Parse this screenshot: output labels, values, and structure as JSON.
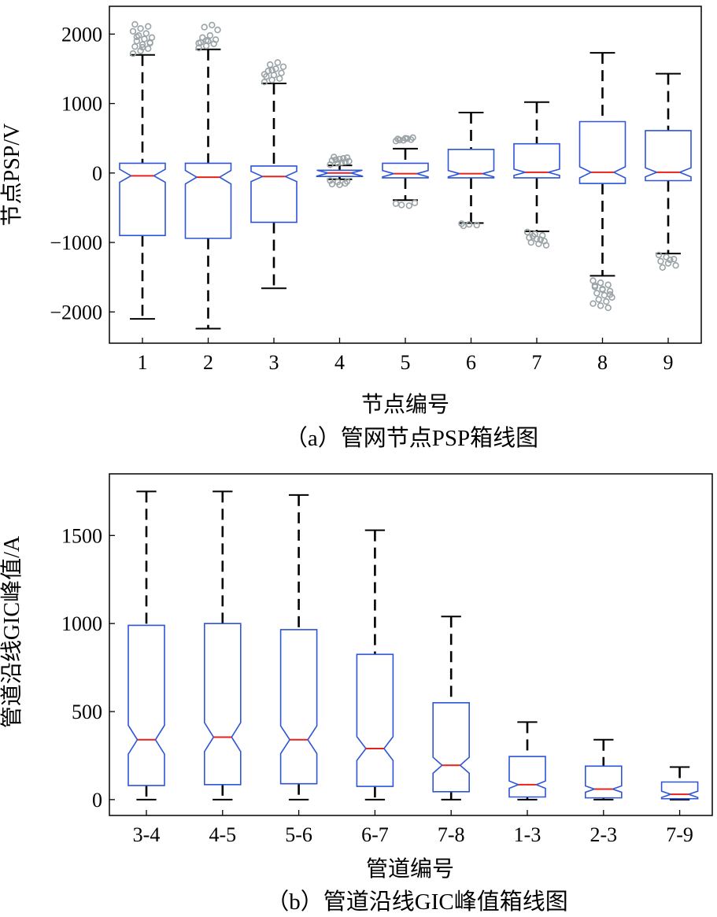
{
  "chart_data": [
    {
      "type": "boxplot",
      "notched": true,
      "caption": "（a）管网节点PSP箱线图",
      "xlabel": "节点编号",
      "ylabel": "节点PSP/V",
      "ylim": [
        -2450,
        2400
      ],
      "yticks": [
        2000,
        1000,
        0,
        -1000,
        -2000
      ],
      "ytick_labels": [
        "2000",
        "1000",
        "0",
        "−1000",
        "−2000"
      ],
      "categories": [
        "1",
        "2",
        "3",
        "4",
        "5",
        "6",
        "7",
        "8",
        "9"
      ],
      "boxes": [
        {
          "q1": -900,
          "median": -40,
          "q3": 140,
          "whisker_low": -2100,
          "whisker_high": 1700,
          "outliers": [
            1720,
            1760,
            1790,
            1820,
            1850,
            1880,
            1900,
            1930,
            1950,
            1980,
            2010,
            2040,
            2080,
            2110,
            2140,
            1810,
            1870,
            1960
          ]
        },
        {
          "q1": -940,
          "median": -60,
          "q3": 140,
          "whisker_low": -2240,
          "whisker_high": 1780,
          "outliers": [
            1800,
            1830,
            1860,
            1880,
            1900,
            1920,
            1950,
            1980,
            2060,
            2100,
            2130,
            1870,
            1910
          ]
        },
        {
          "q1": -710,
          "median": -50,
          "q3": 100,
          "whisker_low": -1660,
          "whisker_high": 1290,
          "outliers": [
            1310,
            1340,
            1360,
            1390,
            1410,
            1440,
            1470,
            1500,
            1530,
            1560,
            1590,
            1420,
            1480
          ]
        },
        {
          "q1": -50,
          "median": 0,
          "q3": 40,
          "whisker_low": -90,
          "whisker_high": 110,
          "outliers": [
            120,
            140,
            160,
            180,
            200,
            220,
            230,
            150,
            170,
            190,
            210,
            -110,
            -130,
            -150,
            -160,
            -170,
            -120
          ]
        },
        {
          "q1": -70,
          "median": -10,
          "q3": 140,
          "whisker_low": -390,
          "whisker_high": 350,
          "outliers": [
            460,
            470,
            480,
            490,
            500,
            510,
            475,
            495,
            -430,
            -460,
            -470,
            -440
          ]
        },
        {
          "q1": -70,
          "median": -10,
          "q3": 340,
          "whisker_low": -720,
          "whisker_high": 870,
          "outliers": [
            -730,
            -740,
            -750,
            -760
          ]
        },
        {
          "q1": -70,
          "median": 10,
          "q3": 420,
          "whisker_low": -840,
          "whisker_high": 1020,
          "outliers": [
            -850,
            -880,
            -900,
            -930,
            -950,
            -980,
            -1000,
            -1020,
            -1040,
            -910,
            -960
          ]
        },
        {
          "q1": -150,
          "median": 10,
          "q3": 740,
          "whisker_low": -1480,
          "whisker_high": 1730,
          "outliers": [
            -1550,
            -1580,
            -1610,
            -1640,
            -1670,
            -1700,
            -1730,
            -1760,
            -1790,
            -1820,
            -1850,
            -1880,
            -1910,
            -1940,
            -1620,
            -1680,
            -1750
          ]
        },
        {
          "q1": -110,
          "median": 10,
          "q3": 610,
          "whisker_low": -1160,
          "whisker_high": 1430,
          "outliers": [
            -1180,
            -1210,
            -1240,
            -1270,
            -1300,
            -1330,
            -1360,
            -1250
          ]
        }
      ]
    },
    {
      "type": "boxplot",
      "notched": true,
      "caption": "（b）管道沿线GIC峰值箱线图",
      "xlabel": "管道编号",
      "ylabel": "管道沿线GIC峰值/A",
      "ylim": [
        -90,
        1850
      ],
      "yticks": [
        1500,
        1000,
        500,
        0
      ],
      "ytick_labels": [
        "1500",
        "1000",
        "500",
        "0"
      ],
      "categories": [
        "3-4",
        "4-5",
        "5-6",
        "6-7",
        "7-8",
        "1-3",
        "2-3",
        "7-9"
      ],
      "boxes": [
        {
          "q1": 80,
          "median": 340,
          "q3": 990,
          "whisker_low": 0,
          "whisker_high": 1750,
          "outliers": []
        },
        {
          "q1": 85,
          "median": 355,
          "q3": 1000,
          "whisker_low": 0,
          "whisker_high": 1750,
          "outliers": []
        },
        {
          "q1": 90,
          "median": 340,
          "q3": 965,
          "whisker_low": 0,
          "whisker_high": 1730,
          "outliers": []
        },
        {
          "q1": 75,
          "median": 290,
          "q3": 825,
          "whisker_low": 0,
          "whisker_high": 1530,
          "outliers": []
        },
        {
          "q1": 45,
          "median": 195,
          "q3": 550,
          "whisker_low": 0,
          "whisker_high": 1040,
          "outliers": []
        },
        {
          "q1": 15,
          "median": 85,
          "q3": 245,
          "whisker_low": 0,
          "whisker_high": 440,
          "outliers": []
        },
        {
          "q1": 10,
          "median": 60,
          "q3": 190,
          "whisker_low": 0,
          "whisker_high": 340,
          "outliers": []
        },
        {
          "q1": 5,
          "median": 30,
          "q3": 100,
          "whisker_low": 0,
          "whisker_high": 185,
          "outliers": []
        }
      ]
    }
  ],
  "colors": {
    "box": "#2d55d6",
    "median": "#e8221b",
    "whisker": "#000000",
    "outlier": "#9aa3a6"
  }
}
